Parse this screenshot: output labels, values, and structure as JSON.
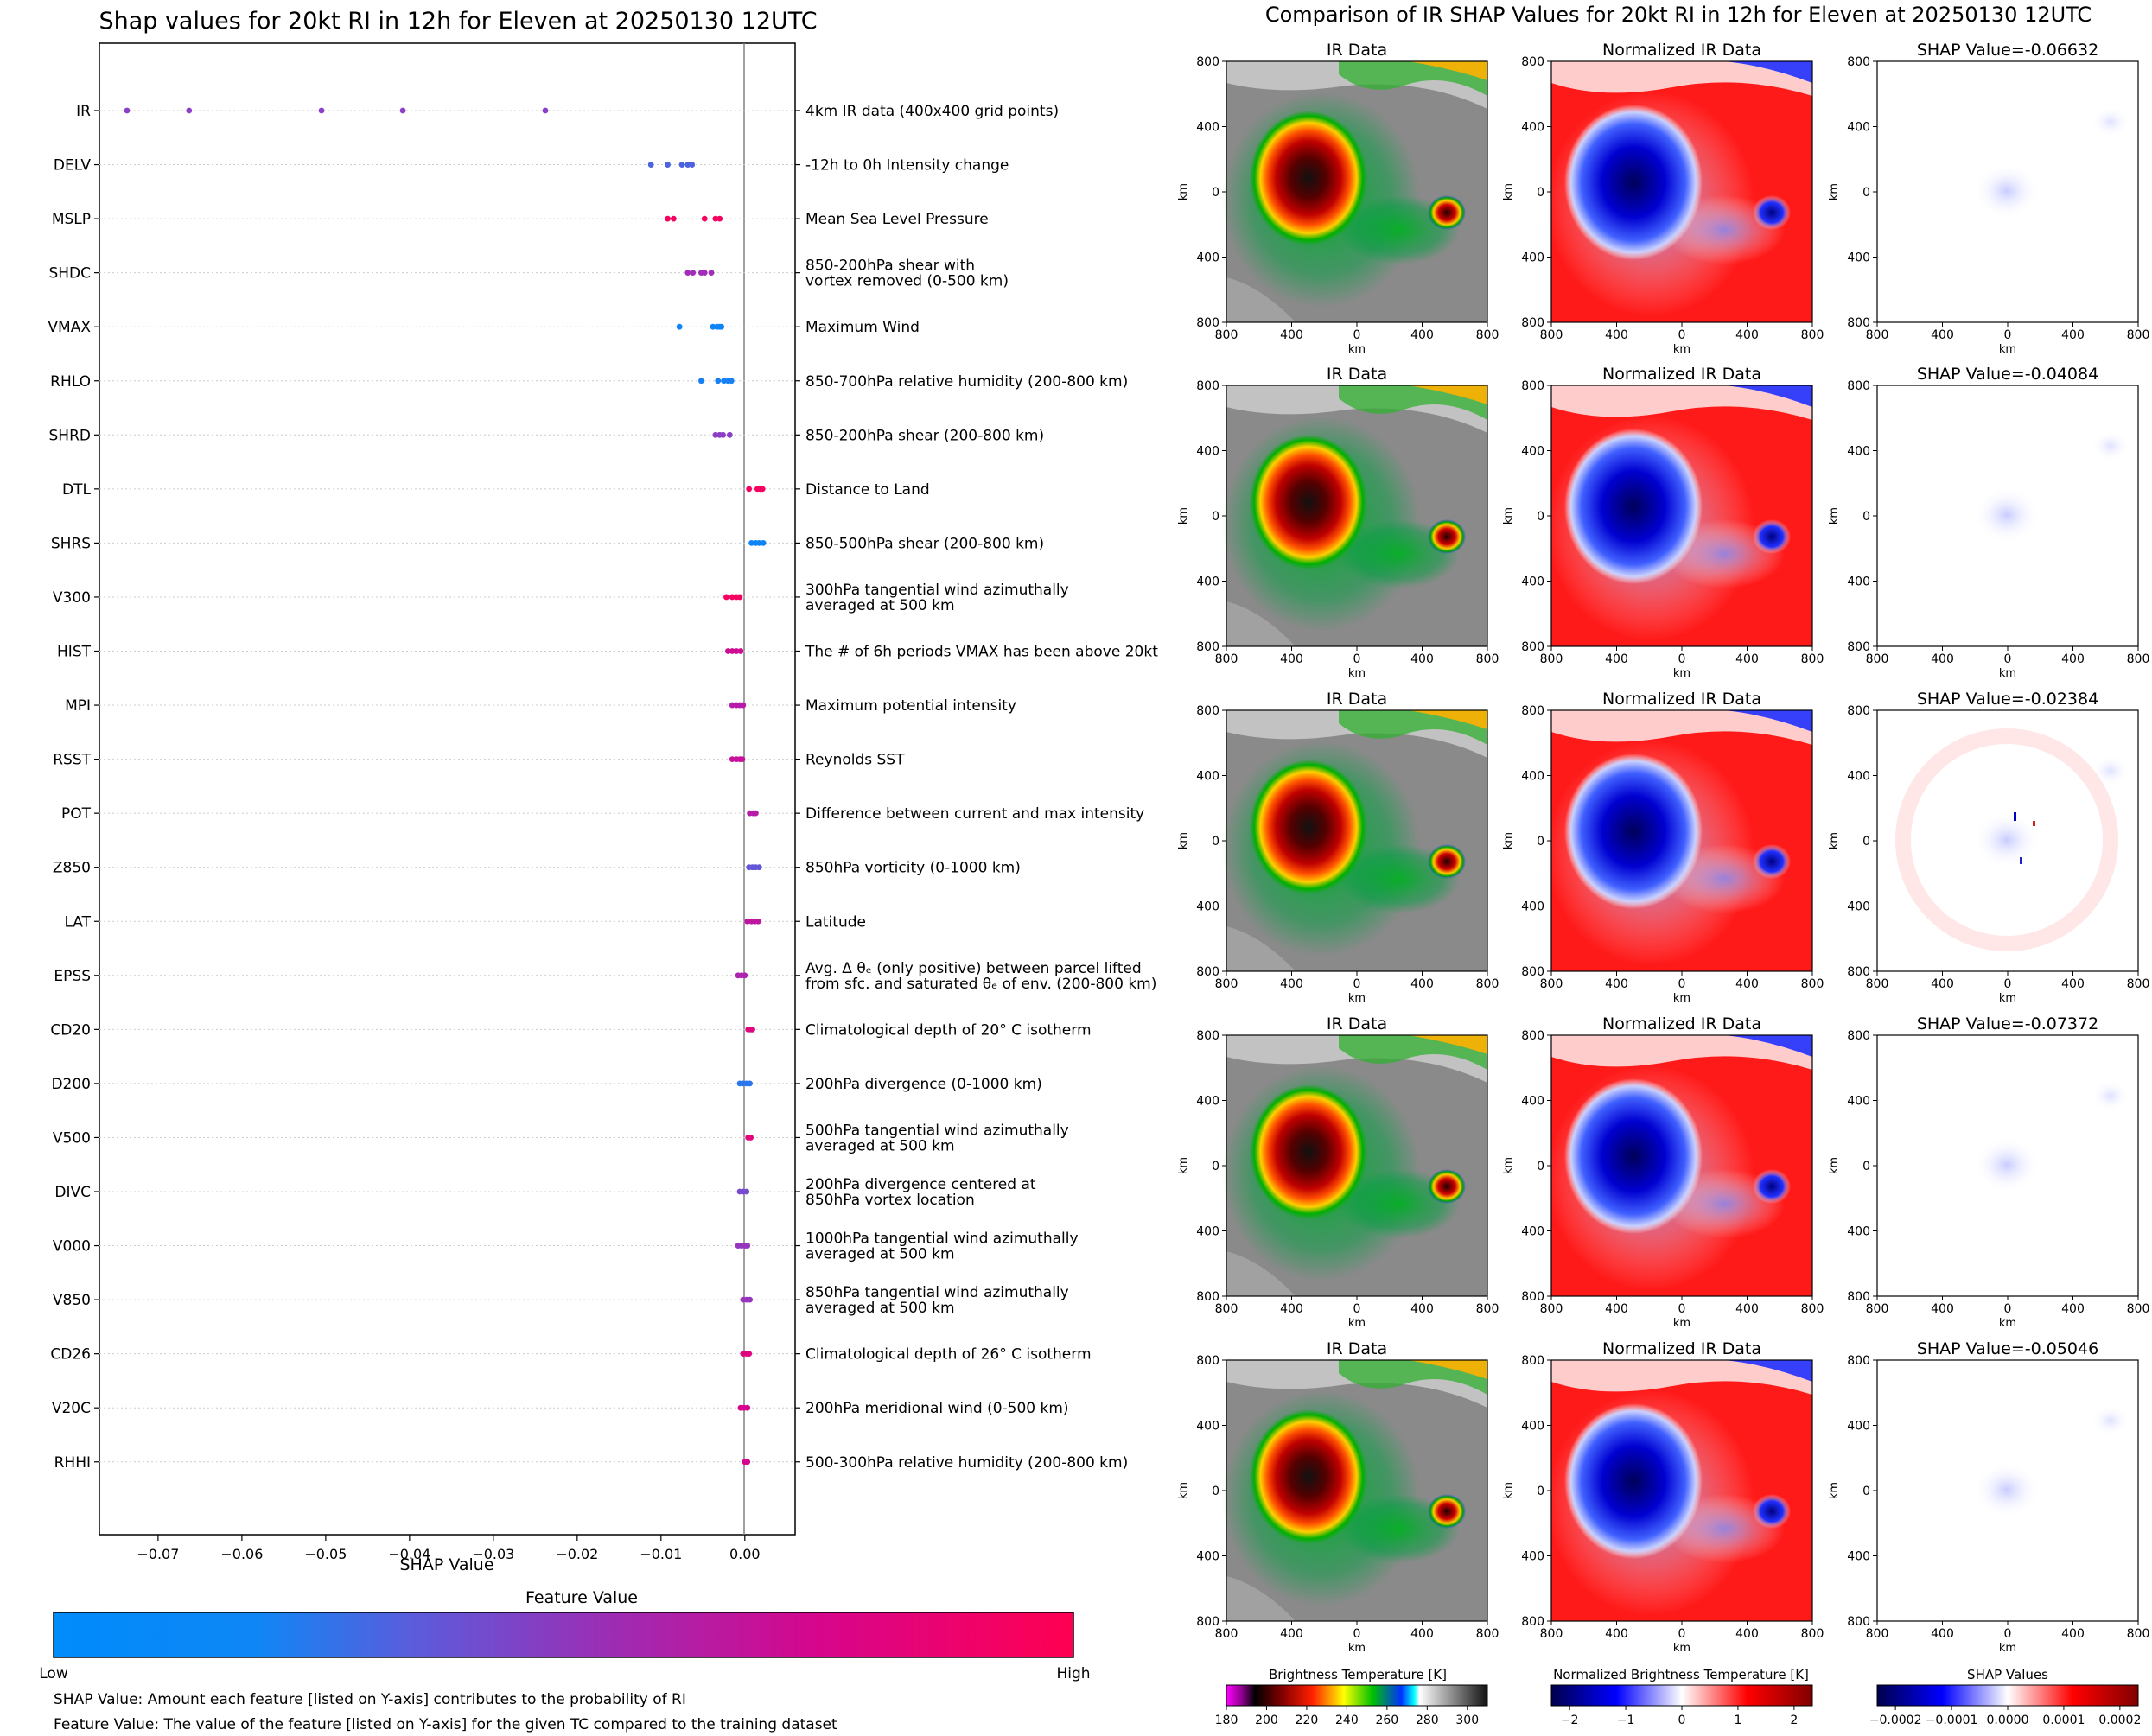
{
  "left_title": "Shap values for 20kt RI in 12h for Eleven at 20250130 12UTC",
  "right_title": "Comparison of IR SHAP Values for 20kt RI in 12h for Eleven at 20250130 12UTC",
  "colorbar_main": {
    "title": "Feature Value",
    "low_label": "Low",
    "high_label": "High",
    "colors": [
      "#008bfb",
      "#3a6fe8",
      "#8b3fc6",
      "#b71ba9",
      "#d6068c",
      "#ff0052"
    ]
  },
  "footnotes": [
    "SHAP Value: Amount each feature [listed on Y-axis] contributes to the probability of RI",
    "Feature Value: The value of the feature [listed on Y-axis] for the given TC compared to the training dataset"
  ],
  "panel_labels": {
    "ir": "IR Data",
    "norm": "Normalized IR Data",
    "shap_prefix": "SHAP Value=",
    "km": "km"
  },
  "panel_ticks": [
    "800",
    "400",
    "0",
    "400",
    "800"
  ],
  "shap_values": [
    "-0.06632",
    "-0.04084",
    "-0.02384",
    "-0.07372",
    "-0.05046"
  ],
  "bottom_colorbars": [
    {
      "name": "ir",
      "title": "Brightness Temperature [K]",
      "ticks": [
        "180",
        "200",
        "220",
        "240",
        "260",
        "280",
        "300"
      ]
    },
    {
      "name": "norm",
      "title": "Normalized Brightness Temperature [K]",
      "ticks": [
        "−2",
        "−1",
        "0",
        "1",
        "2"
      ]
    },
    {
      "name": "shap",
      "title": "SHAP Values",
      "ticks": [
        "−0.0002",
        "−0.0001",
        "0.0000",
        "0.0001",
        "0.0002"
      ]
    }
  ],
  "chart_data": {
    "type": "scatter",
    "title": "Shap values for 20kt RI in 12h for Eleven at 20250130 12UTC",
    "xlabel": "SHAP Value",
    "ylabel": "",
    "xlim": [
      -0.077,
      0.006
    ],
    "x_ticks": [
      "−0.07",
      "−0.06",
      "−0.05",
      "−0.04",
      "−0.03",
      "−0.02",
      "−0.01",
      "0.00"
    ],
    "x_tick_values": [
      -0.07,
      -0.06,
      -0.05,
      -0.04,
      -0.03,
      -0.02,
      -0.01,
      0.0
    ],
    "grid": false,
    "features": [
      {
        "name": "IR",
        "description": "4km IR data (400x400 grid points)",
        "points": [
          {
            "x": -0.0737,
            "c": 0.4
          },
          {
            "x": -0.0663,
            "c": 0.4
          },
          {
            "x": -0.0505,
            "c": 0.4
          },
          {
            "x": -0.0408,
            "c": 0.4
          },
          {
            "x": -0.0238,
            "c": 0.4
          }
        ]
      },
      {
        "name": "DELV",
        "description": "-12h to 0h Intensity change",
        "points": [
          {
            "x": -0.0112,
            "c": 0.25
          },
          {
            "x": -0.0092,
            "c": 0.25
          },
          {
            "x": -0.0075,
            "c": 0.25
          },
          {
            "x": -0.0068,
            "c": 0.25
          },
          {
            "x": -0.0063,
            "c": 0.25
          }
        ]
      },
      {
        "name": "MSLP",
        "description": "Mean Sea Level Pressure",
        "points": [
          {
            "x": -0.0092,
            "c": 0.95
          },
          {
            "x": -0.0085,
            "c": 0.95
          },
          {
            "x": -0.0048,
            "c": 0.95
          },
          {
            "x": -0.0035,
            "c": 0.95
          },
          {
            "x": -0.003,
            "c": 0.95
          }
        ]
      },
      {
        "name": "SHDC",
        "description": "850-200hPa shear with\nvortex removed (0-500 km)",
        "points": [
          {
            "x": -0.0068,
            "c": 0.5
          },
          {
            "x": -0.0062,
            "c": 0.5
          },
          {
            "x": -0.0052,
            "c": 0.5
          },
          {
            "x": -0.0048,
            "c": 0.5
          },
          {
            "x": -0.004,
            "c": 0.5
          }
        ]
      },
      {
        "name": "VMAX",
        "description": "Maximum Wind",
        "points": [
          {
            "x": -0.0078,
            "c": 0.05
          },
          {
            "x": -0.0038,
            "c": 0.05
          },
          {
            "x": -0.0033,
            "c": 0.05
          },
          {
            "x": -0.003,
            "c": 0.05
          },
          {
            "x": -0.0028,
            "c": 0.05
          }
        ]
      },
      {
        "name": "RHLO",
        "description": "850-700hPa relative humidity (200-800 km)",
        "points": [
          {
            "x": -0.0052,
            "c": 0.08
          },
          {
            "x": -0.0032,
            "c": 0.08
          },
          {
            "x": -0.0025,
            "c": 0.08
          },
          {
            "x": -0.002,
            "c": 0.08
          },
          {
            "x": -0.0016,
            "c": 0.08
          }
        ]
      },
      {
        "name": "SHRD",
        "description": "850-200hPa shear (200-800 km)",
        "points": [
          {
            "x": -0.0035,
            "c": 0.4
          },
          {
            "x": -0.003,
            "c": 0.4
          },
          {
            "x": -0.0026,
            "c": 0.4
          },
          {
            "x": -0.0018,
            "c": 0.4
          }
        ]
      },
      {
        "name": "DTL",
        "description": "Distance to Land",
        "points": [
          {
            "x": 0.0005,
            "c": 0.95
          },
          {
            "x": 0.0015,
            "c": 0.95
          },
          {
            "x": 0.0018,
            "c": 0.95
          },
          {
            "x": 0.0021,
            "c": 0.95
          }
        ]
      },
      {
        "name": "SHRS",
        "description": "850-500hPa shear (200-800 km)",
        "points": [
          {
            "x": 0.0008,
            "c": 0.05
          },
          {
            "x": 0.0013,
            "c": 0.05
          },
          {
            "x": 0.0017,
            "c": 0.05
          },
          {
            "x": 0.0022,
            "c": 0.05
          }
        ]
      },
      {
        "name": "V300",
        "description": "300hPa tangential wind azimuthally\naveraged at 500 km",
        "points": [
          {
            "x": -0.0022,
            "c": 0.95
          },
          {
            "x": -0.0015,
            "c": 0.95
          },
          {
            "x": -0.001,
            "c": 0.95
          },
          {
            "x": -0.0006,
            "c": 0.95
          }
        ]
      },
      {
        "name": "HIST",
        "description": "The # of 6h periods VMAX has been above 20kt",
        "points": [
          {
            "x": -0.002,
            "c": 0.75
          },
          {
            "x": -0.0015,
            "c": 0.75
          },
          {
            "x": -0.001,
            "c": 0.75
          },
          {
            "x": -0.0005,
            "c": 0.75
          }
        ]
      },
      {
        "name": "MPI",
        "description": "Maximum potential intensity",
        "points": [
          {
            "x": -0.0015,
            "c": 0.6
          },
          {
            "x": -0.001,
            "c": 0.6
          },
          {
            "x": -0.0006,
            "c": 0.6
          },
          {
            "x": -0.0002,
            "c": 0.6
          }
        ]
      },
      {
        "name": "RSST",
        "description": "Reynolds SST",
        "points": [
          {
            "x": -0.0015,
            "c": 0.7
          },
          {
            "x": -0.001,
            "c": 0.7
          },
          {
            "x": -0.0006,
            "c": 0.7
          },
          {
            "x": -0.0003,
            "c": 0.7
          }
        ]
      },
      {
        "name": "POT",
        "description": "Difference between current and max intensity",
        "points": [
          {
            "x": 0.0006,
            "c": 0.6
          },
          {
            "x": 0.001,
            "c": 0.6
          },
          {
            "x": 0.0013,
            "c": 0.6
          }
        ]
      },
      {
        "name": "Z850",
        "description": "850hPa vorticity (0-1000 km)",
        "points": [
          {
            "x": 0.0005,
            "c": 0.3
          },
          {
            "x": 0.0009,
            "c": 0.3
          },
          {
            "x": 0.0013,
            "c": 0.3
          },
          {
            "x": 0.0017,
            "c": 0.3
          }
        ]
      },
      {
        "name": "LAT",
        "description": "Latitude",
        "points": [
          {
            "x": 0.0003,
            "c": 0.65
          },
          {
            "x": 0.0008,
            "c": 0.65
          },
          {
            "x": 0.0012,
            "c": 0.65
          },
          {
            "x": 0.0016,
            "c": 0.65
          }
        ]
      },
      {
        "name": "EPSS",
        "description": "Avg. Δ θₑ (only positive) between parcel lifted\nfrom sfc. and saturated θₑ of env. (200-800 km)",
        "points": [
          {
            "x": -0.0008,
            "c": 0.55
          },
          {
            "x": -0.0004,
            "c": 0.55
          },
          {
            "x": 0.0,
            "c": 0.55
          }
        ]
      },
      {
        "name": "CD20",
        "description": "Climatological depth of 20° C isotherm",
        "points": [
          {
            "x": 0.0004,
            "c": 0.85
          },
          {
            "x": 0.0007,
            "c": 0.85
          },
          {
            "x": 0.0009,
            "c": 0.85
          }
        ]
      },
      {
        "name": "D200",
        "description": "200hPa divergence (0-1000 km)",
        "points": [
          {
            "x": -0.0006,
            "c": 0.15
          },
          {
            "x": -0.0002,
            "c": 0.15
          },
          {
            "x": 0.0002,
            "c": 0.15
          },
          {
            "x": 0.0006,
            "c": 0.15
          }
        ]
      },
      {
        "name": "V500",
        "description": "500hPa tangential wind azimuthally\naveraged at 500 km",
        "points": [
          {
            "x": 0.0004,
            "c": 0.85
          },
          {
            "x": 0.0007,
            "c": 0.85
          }
        ]
      },
      {
        "name": "DIVC",
        "description": "200hPa divergence centered at\n850hPa vortex location",
        "points": [
          {
            "x": -0.0006,
            "c": 0.35
          },
          {
            "x": -0.0002,
            "c": 0.35
          },
          {
            "x": 0.0002,
            "c": 0.35
          }
        ]
      },
      {
        "name": "V000",
        "description": "1000hPa tangential wind azimuthally\naveraged at 500 km",
        "points": [
          {
            "x": -0.0008,
            "c": 0.45
          },
          {
            "x": -0.0004,
            "c": 0.45
          },
          {
            "x": 0.0,
            "c": 0.45
          },
          {
            "x": 0.0003,
            "c": 0.45
          }
        ]
      },
      {
        "name": "V850",
        "description": "850hPa tangential wind azimuthally\naveraged at 500 km",
        "points": [
          {
            "x": -0.0002,
            "c": 0.45
          },
          {
            "x": 0.0002,
            "c": 0.45
          },
          {
            "x": 0.0006,
            "c": 0.45
          }
        ]
      },
      {
        "name": "CD26",
        "description": "Climatological depth of 26° C isotherm",
        "points": [
          {
            "x": -0.0002,
            "c": 0.85
          },
          {
            "x": 0.0002,
            "c": 0.85
          },
          {
            "x": 0.0005,
            "c": 0.85
          }
        ]
      },
      {
        "name": "V20C",
        "description": "200hPa meridional wind (0-500 km)",
        "points": [
          {
            "x": -0.0005,
            "c": 0.8
          },
          {
            "x": -0.0001,
            "c": 0.8
          },
          {
            "x": 0.0003,
            "c": 0.8
          }
        ]
      },
      {
        "name": "RHHI",
        "description": "500-300hPa relative humidity (200-800 km)",
        "points": [
          {
            "x": 0.0,
            "c": 0.8
          },
          {
            "x": 0.0003,
            "c": 0.8
          }
        ]
      }
    ]
  }
}
